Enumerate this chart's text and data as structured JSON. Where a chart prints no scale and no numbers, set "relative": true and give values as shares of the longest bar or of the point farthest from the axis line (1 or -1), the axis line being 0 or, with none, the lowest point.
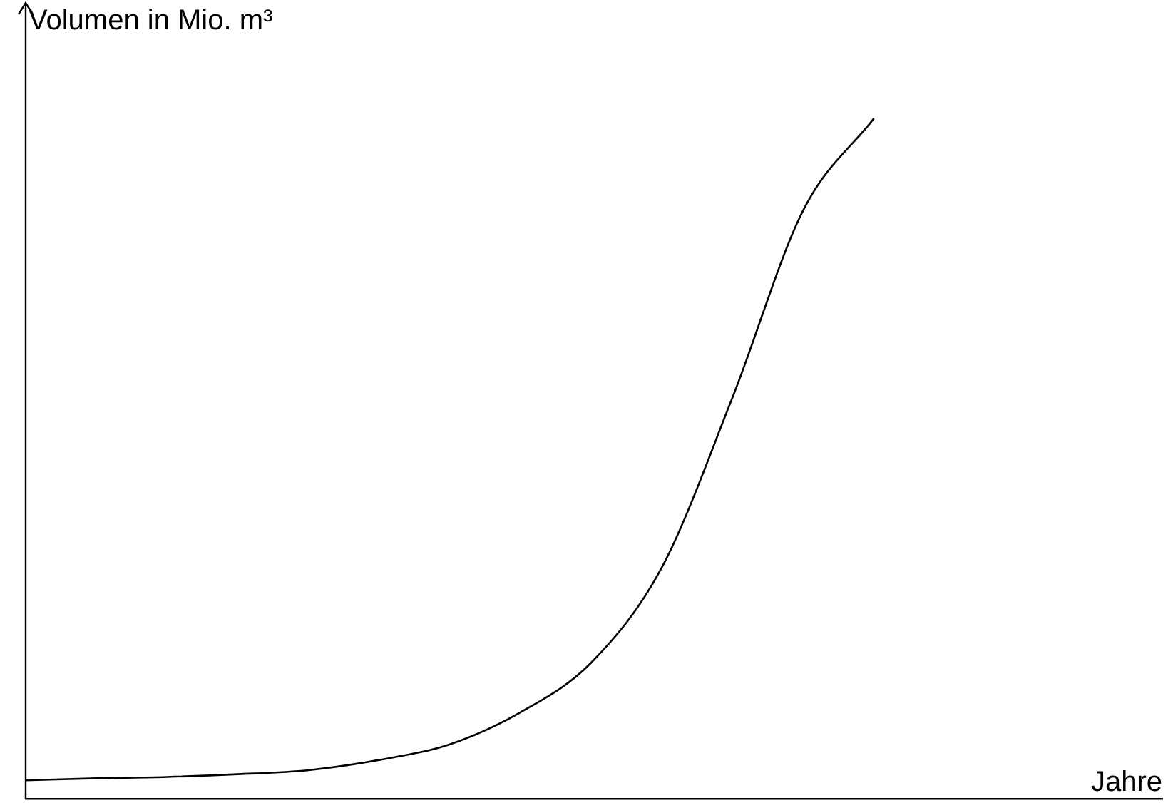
{
  "chart_data": {
    "type": "line",
    "relative": true,
    "annotations": [
      "Jahre"
    ],
    "ylabel": "Volumen in Mio. m³",
    "categories": [
      null,
      null,
      null,
      null,
      null,
      null,
      null,
      null,
      null,
      null,
      null,
      null,
      null
    ],
    "series": [
      {
        "color": "#000000",
        "values": [
          0.027,
          0.03,
          0.032,
          0.036,
          0.042,
          0.057,
          0.08,
          0.127,
          0.2,
          0.34,
          0.59,
          0.865,
          1
        ]
      }
    ],
    "legend": false,
    "marker": "none",
    "line_style": "solid"
  }
}
